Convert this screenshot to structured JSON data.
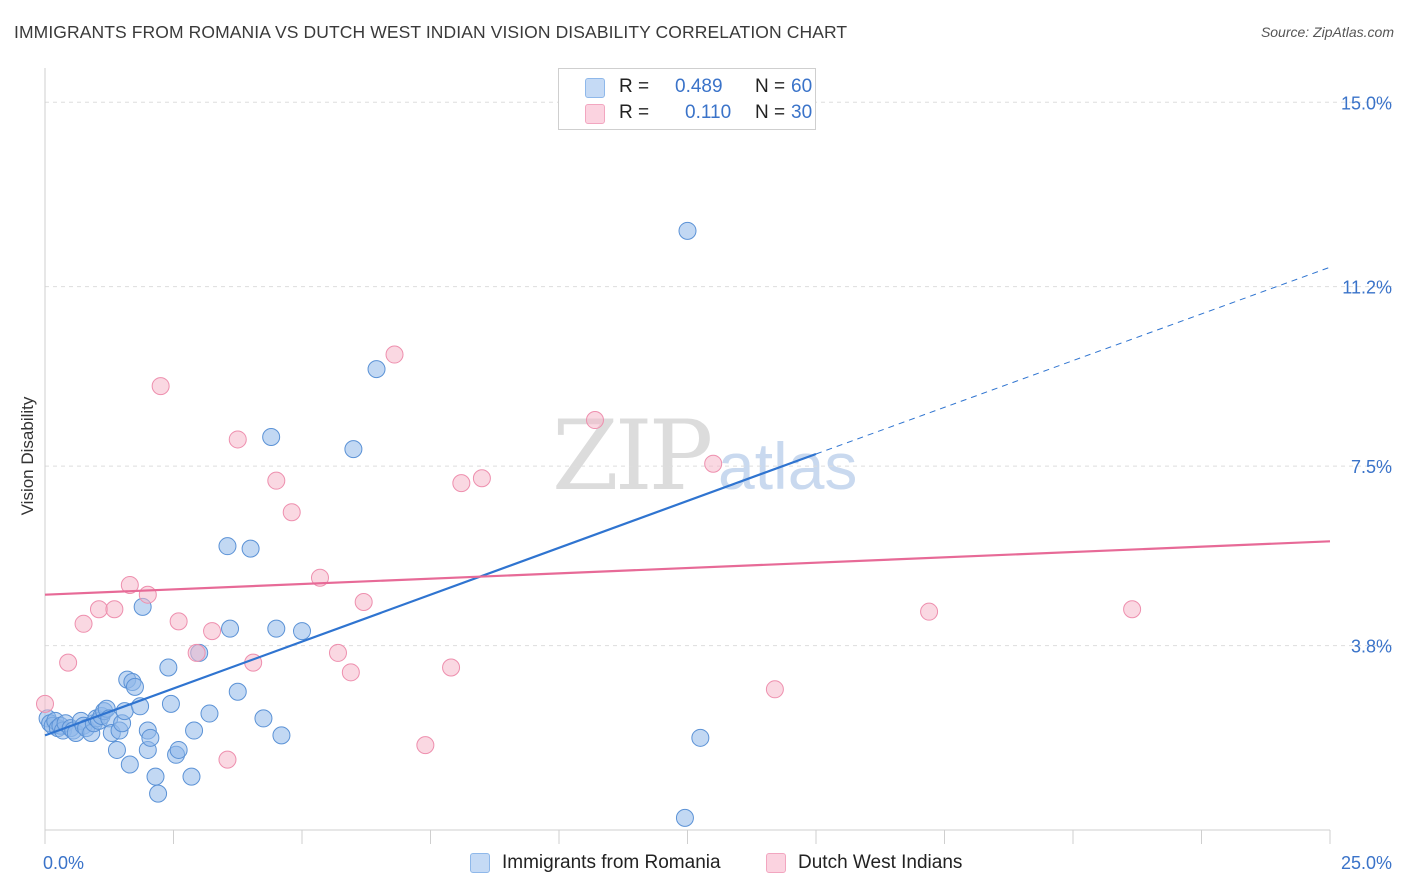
{
  "title": "IMMIGRANTS FROM ROMANIA VS DUTCH WEST INDIAN VISION DISABILITY CORRELATION CHART",
  "source": "Source: ZipAtlas.com",
  "watermark": {
    "zip": "ZIP",
    "atlas": "atlas"
  },
  "legend": {
    "rows": [
      {
        "r_label": "R =",
        "r_value": "0.489",
        "n_label": "N =",
        "n_value": "60"
      },
      {
        "r_label": "R =",
        "r_value": "0.110",
        "n_label": "N =",
        "n_value": "30"
      }
    ]
  },
  "chart_data": {
    "type": "scatter",
    "title": "IMMIGRANTS FROM ROMANIA VS DUTCH WEST INDIAN VISION DISABILITY CORRELATION CHART",
    "xlabel": "",
    "ylabel": "Vision Disability",
    "xlim": [
      0,
      25
    ],
    "ylim": [
      0,
      15.5
    ],
    "x_tick_labels": [
      "0.0%",
      "25.0%"
    ],
    "y_ticks": [
      3.8,
      7.5,
      11.2,
      15.0
    ],
    "y_tick_labels": [
      "3.8%",
      "7.5%",
      "11.2%",
      "15.0%"
    ],
    "grid": true,
    "legend_position": "top-center",
    "series": [
      {
        "name": "Immigrants from Romania",
        "color": "#8fb8ea",
        "stroke": "#5b92d6",
        "trend_color": "#2f74d0",
        "trend": {
          "x0": 0,
          "y0": 1.95,
          "x1": 15,
          "y1": 7.75,
          "dashed_to_x": 25,
          "dashed_to_y": 11.6
        },
        "points": [
          [
            0.05,
            2.3
          ],
          [
            0.1,
            2.2
          ],
          [
            0.15,
            2.15
          ],
          [
            0.2,
            2.25
          ],
          [
            0.25,
            2.1
          ],
          [
            0.3,
            2.15
          ],
          [
            0.35,
            2.05
          ],
          [
            0.4,
            2.2
          ],
          [
            0.5,
            2.1
          ],
          [
            0.55,
            2.05
          ],
          [
            0.6,
            2.0
          ],
          [
            0.7,
            2.25
          ],
          [
            0.75,
            2.15
          ],
          [
            0.8,
            2.1
          ],
          [
            0.9,
            2.0
          ],
          [
            0.95,
            2.2
          ],
          [
            1.0,
            2.3
          ],
          [
            1.05,
            2.25
          ],
          [
            1.1,
            2.35
          ],
          [
            1.15,
            2.45
          ],
          [
            1.2,
            2.5
          ],
          [
            1.25,
            2.3
          ],
          [
            1.3,
            2.0
          ],
          [
            1.4,
            1.65
          ],
          [
            1.45,
            2.05
          ],
          [
            1.5,
            2.2
          ],
          [
            1.55,
            2.45
          ],
          [
            1.6,
            3.1
          ],
          [
            1.65,
            1.35
          ],
          [
            1.7,
            3.05
          ],
          [
            1.75,
            2.95
          ],
          [
            1.85,
            2.55
          ],
          [
            1.9,
            4.6
          ],
          [
            2.0,
            2.05
          ],
          [
            2.0,
            1.65
          ],
          [
            2.05,
            1.9
          ],
          [
            2.15,
            1.1
          ],
          [
            2.2,
            0.75
          ],
          [
            2.4,
            3.35
          ],
          [
            2.45,
            2.6
          ],
          [
            2.55,
            1.55
          ],
          [
            2.6,
            1.65
          ],
          [
            2.85,
            1.1
          ],
          [
            2.9,
            2.05
          ],
          [
            3.0,
            3.65
          ],
          [
            3.2,
            2.4
          ],
          [
            3.55,
            5.85
          ],
          [
            3.6,
            4.15
          ],
          [
            3.75,
            2.85
          ],
          [
            4.0,
            5.8
          ],
          [
            4.25,
            2.3
          ],
          [
            4.5,
            4.15
          ],
          [
            4.4,
            8.1
          ],
          [
            4.6,
            1.95
          ],
          [
            5.0,
            4.1
          ],
          [
            6.0,
            7.85
          ],
          [
            6.45,
            9.5
          ],
          [
            12.45,
            0.25
          ],
          [
            12.75,
            1.9
          ],
          [
            12.5,
            12.35
          ]
        ]
      },
      {
        "name": "Dutch West Indians",
        "color": "#f6b8cb",
        "stroke": "#ee8fae",
        "trend_color": "#e76a97",
        "trend": {
          "x0": 0,
          "y0": 4.85,
          "x1": 25,
          "y1": 5.95
        },
        "points": [
          [
            0.0,
            2.6
          ],
          [
            0.45,
            3.45
          ],
          [
            0.75,
            4.25
          ],
          [
            1.05,
            4.55
          ],
          [
            1.35,
            4.55
          ],
          [
            1.65,
            5.05
          ],
          [
            2.0,
            4.85
          ],
          [
            2.25,
            9.15
          ],
          [
            2.6,
            4.3
          ],
          [
            2.95,
            3.65
          ],
          [
            3.25,
            4.1
          ],
          [
            3.55,
            1.45
          ],
          [
            3.75,
            8.05
          ],
          [
            4.05,
            3.45
          ],
          [
            4.5,
            7.2
          ],
          [
            4.8,
            6.55
          ],
          [
            5.35,
            5.2
          ],
          [
            5.7,
            3.65
          ],
          [
            5.95,
            3.25
          ],
          [
            6.2,
            4.7
          ],
          [
            6.8,
            9.8
          ],
          [
            7.4,
            1.75
          ],
          [
            7.9,
            3.35
          ],
          [
            8.1,
            7.15
          ],
          [
            8.5,
            7.25
          ],
          [
            10.7,
            8.45
          ],
          [
            13.0,
            7.55
          ],
          [
            14.2,
            2.9
          ],
          [
            17.2,
            4.5
          ],
          [
            21.15,
            4.55
          ]
        ]
      }
    ]
  },
  "bottom_legend": [
    {
      "label": "Immigrants from Romania",
      "color": "#c5daf5",
      "border": "#8fb8ea"
    },
    {
      "label": "Dutch West Indians",
      "color": "#fbd3e0",
      "border": "#f2a6c0"
    }
  ]
}
